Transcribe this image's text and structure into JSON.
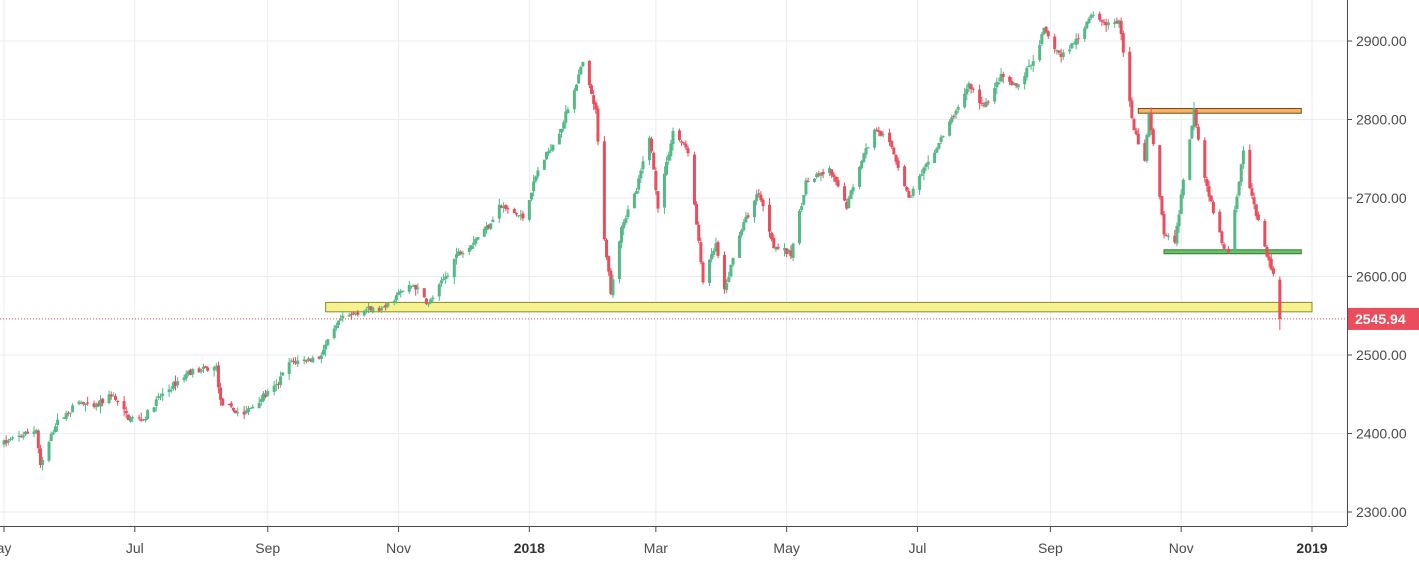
{
  "chart_data": {
    "type": "candlestick",
    "title": "",
    "xlabel": "",
    "ylabel": "",
    "ylim": [
      2280,
      2960
    ],
    "x_range": [
      "2017-05-01",
      "2019-01-11"
    ],
    "y_ticks": [
      {
        "value": 2300,
        "label": "2300.00"
      },
      {
        "value": 2400,
        "label": "2400.00"
      },
      {
        "value": 2500,
        "label": "2500.00"
      },
      {
        "value": 2600,
        "label": "2600.00"
      },
      {
        "value": 2700,
        "label": "2700.00"
      },
      {
        "value": 2800,
        "label": "2800.00"
      },
      {
        "value": 2900,
        "label": "2900.00"
      }
    ],
    "x_ticks": [
      {
        "date": "2017-05-01",
        "label": "ay",
        "bold": false
      },
      {
        "date": "2017-07-01",
        "label": "Jul",
        "bold": false
      },
      {
        "date": "2017-09-01",
        "label": "Sep",
        "bold": false
      },
      {
        "date": "2017-11-01",
        "label": "Nov",
        "bold": false
      },
      {
        "date": "2018-01-01",
        "label": "2018",
        "bold": true
      },
      {
        "date": "2018-03-01",
        "label": "Mar",
        "bold": false
      },
      {
        "date": "2018-05-01",
        "label": "May",
        "bold": false
      },
      {
        "date": "2018-07-01",
        "label": "Jul",
        "bold": false
      },
      {
        "date": "2018-09-01",
        "label": "Sep",
        "bold": false
      },
      {
        "date": "2018-11-01",
        "label": "Nov",
        "bold": false
      },
      {
        "date": "2019-01-01",
        "label": "2019",
        "bold": true
      }
    ],
    "path": [
      [
        "2017-05-01",
        2388
      ],
      [
        "2017-05-16",
        2405
      ],
      [
        "2017-05-18",
        2357
      ],
      [
        "2017-05-25",
        2412
      ],
      [
        "2017-06-05",
        2440
      ],
      [
        "2017-06-12",
        2432
      ],
      [
        "2017-06-20",
        2450
      ],
      [
        "2017-06-28",
        2420
      ],
      [
        "2017-07-05",
        2418
      ],
      [
        "2017-07-12",
        2445
      ],
      [
        "2017-07-26",
        2478
      ],
      [
        "2017-08-08",
        2484
      ],
      [
        "2017-08-10",
        2440
      ],
      [
        "2017-08-17",
        2428
      ],
      [
        "2017-08-21",
        2425
      ],
      [
        "2017-08-28",
        2443
      ],
      [
        "2017-09-05",
        2460
      ],
      [
        "2017-09-11",
        2490
      ],
      [
        "2017-09-25",
        2497
      ],
      [
        "2017-10-05",
        2545
      ],
      [
        "2017-10-16",
        2558
      ],
      [
        "2017-10-25",
        2558
      ],
      [
        "2017-11-01",
        2578
      ],
      [
        "2017-11-08",
        2590
      ],
      [
        "2017-11-15",
        2565
      ],
      [
        "2017-11-24",
        2605
      ],
      [
        "2017-11-28",
        2628
      ],
      [
        "2017-12-04",
        2640
      ],
      [
        "2017-12-13",
        2665
      ],
      [
        "2017-12-18",
        2690
      ],
      [
        "2017-12-29",
        2675
      ],
      [
        "2018-01-05",
        2735
      ],
      [
        "2018-01-16",
        2790
      ],
      [
        "2018-01-26",
        2872
      ],
      [
        "2018-02-01",
        2810
      ],
      [
        "2018-02-05",
        2650
      ],
      [
        "2018-02-08",
        2582
      ],
      [
        "2018-02-13",
        2665
      ],
      [
        "2018-02-20",
        2710
      ],
      [
        "2018-02-26",
        2780
      ],
      [
        "2018-03-02",
        2690
      ],
      [
        "2018-03-09",
        2785
      ],
      [
        "2018-03-16",
        2760
      ],
      [
        "2018-03-23",
        2595
      ],
      [
        "2018-03-29",
        2640
      ],
      [
        "2018-04-02",
        2580
      ],
      [
        "2018-04-09",
        2655
      ],
      [
        "2018-04-18",
        2708
      ],
      [
        "2018-04-25",
        2640
      ],
      [
        "2018-05-03",
        2628
      ],
      [
        "2018-05-10",
        2720
      ],
      [
        "2018-05-21",
        2735
      ],
      [
        "2018-05-29",
        2690
      ],
      [
        "2018-06-05",
        2750
      ],
      [
        "2018-06-12",
        2790
      ],
      [
        "2018-06-19",
        2765
      ],
      [
        "2018-06-27",
        2700
      ],
      [
        "2018-07-05",
        2740
      ],
      [
        "2018-07-17",
        2800
      ],
      [
        "2018-07-25",
        2845
      ],
      [
        "2018-08-01",
        2815
      ],
      [
        "2018-08-09",
        2855
      ],
      [
        "2018-08-16",
        2840
      ],
      [
        "2018-08-24",
        2875
      ],
      [
        "2018-08-29",
        2913
      ],
      [
        "2018-09-06",
        2880
      ],
      [
        "2018-09-14",
        2905
      ],
      [
        "2018-09-20",
        2935
      ],
      [
        "2018-09-28",
        2920
      ],
      [
        "2018-10-03",
        2925
      ],
      [
        "2018-10-10",
        2785
      ],
      [
        "2018-10-15",
        2750
      ],
      [
        "2018-10-17",
        2810
      ],
      [
        "2018-10-24",
        2655
      ],
      [
        "2018-10-29",
        2640
      ],
      [
        "2018-11-02",
        2725
      ],
      [
        "2018-11-07",
        2813
      ],
      [
        "2018-11-12",
        2726
      ],
      [
        "2018-11-20",
        2642
      ],
      [
        "2018-11-23",
        2633
      ],
      [
        "2018-11-30",
        2760
      ],
      [
        "2018-12-04",
        2700
      ],
      [
        "2018-12-10",
        2637
      ],
      [
        "2018-12-14",
        2600
      ],
      [
        "2018-12-17",
        2546
      ]
    ],
    "last_price": {
      "value": 2545.94,
      "label": "2545.94"
    },
    "zones": [
      {
        "name": "support-zone",
        "y_low": 2555,
        "y_high": 2567,
        "x_start": "2017-09-28",
        "x_end": "2019-01-01",
        "fill": "#f7f291",
        "stroke": "#8a8a20"
      },
      {
        "name": "resistance-zone",
        "y_low": 2808,
        "y_high": 2814,
        "x_start": "2018-10-12",
        "x_end": "2018-12-27",
        "fill": "#f7b36b",
        "stroke": "#7a4a10"
      },
      {
        "name": "neckline-zone",
        "y_low": 2629,
        "y_high": 2634,
        "x_start": "2018-10-24",
        "x_end": "2018-12-27",
        "fill": "#6cc26a",
        "stroke": "#2c7a2a"
      }
    ],
    "colors": {
      "up": "#53b987",
      "down": "#eb4d5c",
      "grid": "#e9eef2",
      "axis": "#4a4a4a",
      "price_tag": "#eb4d5c",
      "price_line": "#eb4d5c"
    },
    "grid": true
  }
}
